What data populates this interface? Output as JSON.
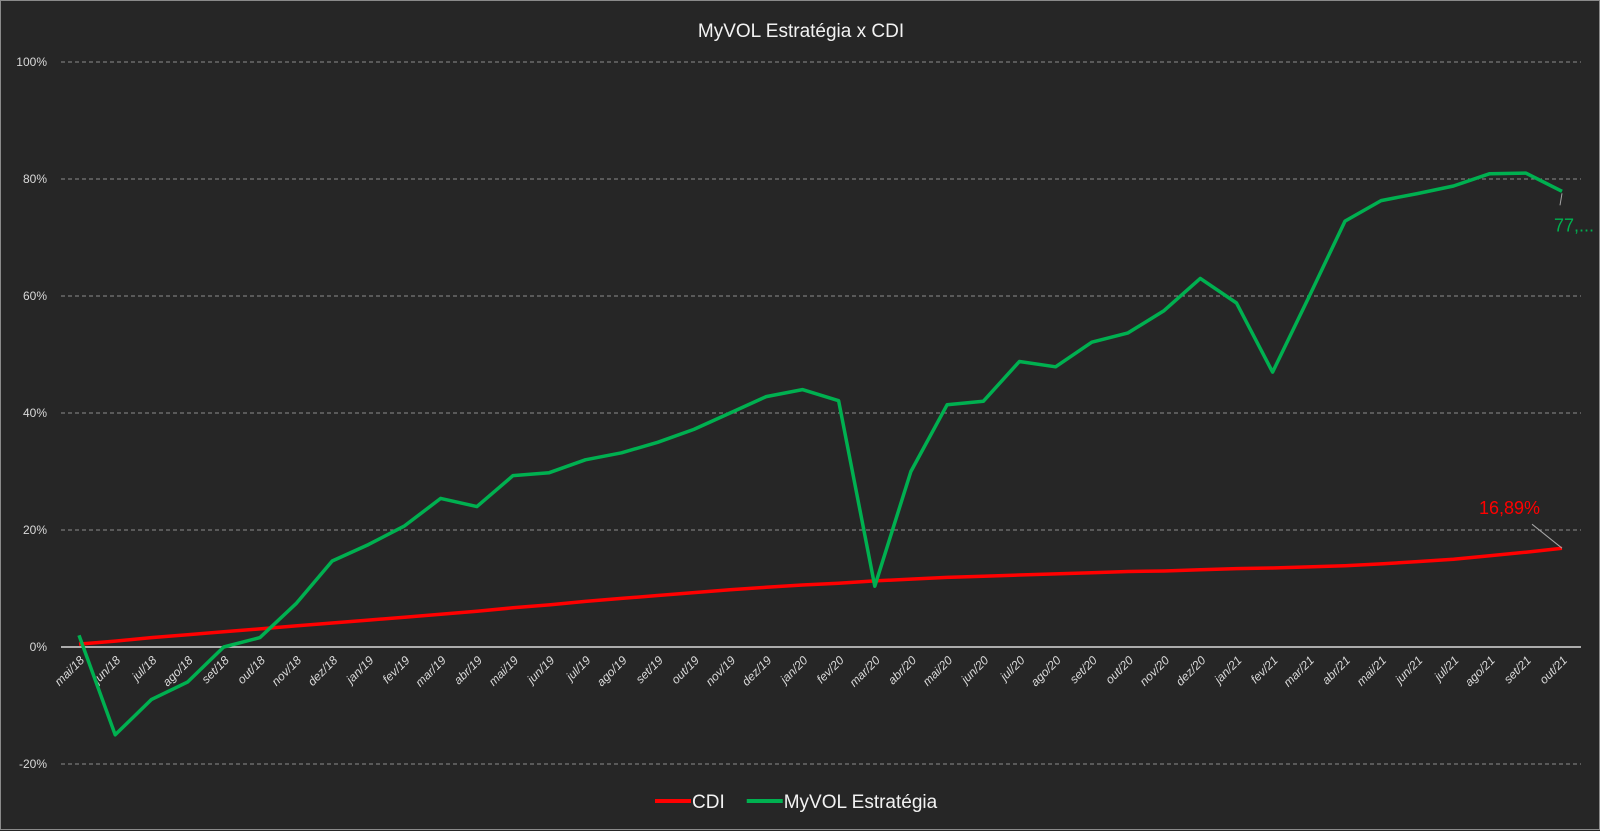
{
  "chart_data": {
    "type": "line",
    "title": "MyVOL Estratégia x CDI",
    "xlabel": "",
    "ylabel": "",
    "ylim": [
      -20,
      100
    ],
    "yticks": [
      -20,
      0,
      20,
      40,
      60,
      80,
      100
    ],
    "ytick_labels": [
      "-20%",
      "0%",
      "20%",
      "40%",
      "60%",
      "80%",
      "100%"
    ],
    "grid": true,
    "legend_position": "bottom",
    "categories": [
      "mai/18",
      "jun/18",
      "jul/18",
      "ago/18",
      "set/18",
      "out/18",
      "nov/18",
      "dez/18",
      "jan/19",
      "fev/19",
      "mar/19",
      "abr/19",
      "mai/19",
      "jun/19",
      "jul/19",
      "ago/19",
      "set/19",
      "out/19",
      "nov/19",
      "dez/19",
      "jan/20",
      "fev/20",
      "mar/20",
      "abr/20",
      "mai/20",
      "jun/20",
      "jul/20",
      "ago/20",
      "set/20",
      "out/20",
      "nov/20",
      "dez/20",
      "jan/21",
      "fev/21",
      "mar/21",
      "abr/21",
      "mai/21",
      "jun/21",
      "jul/21",
      "ago/21",
      "set/21",
      "out/21"
    ],
    "series": [
      {
        "name": "CDI",
        "color": "#ff0000",
        "values": [
          0.5,
          1.0,
          1.6,
          2.1,
          2.6,
          3.1,
          3.6,
          4.1,
          4.6,
          5.1,
          5.6,
          6.1,
          6.7,
          7.2,
          7.8,
          8.3,
          8.8,
          9.3,
          9.8,
          10.2,
          10.6,
          10.9,
          11.3,
          11.6,
          11.9,
          12.1,
          12.3,
          12.5,
          12.7,
          12.9,
          13.0,
          13.2,
          13.4,
          13.5,
          13.7,
          13.9,
          14.2,
          14.6,
          15.0,
          15.6,
          16.2,
          16.89
        ],
        "end_label": "16,89%"
      },
      {
        "name": "MyVOL Estratégia",
        "color": "#00b050",
        "values": [
          2.0,
          -15.0,
          -9.0,
          -6.0,
          0.0,
          1.6,
          7.4,
          14.7,
          17.5,
          20.7,
          25.4,
          24.0,
          29.3,
          29.8,
          32.0,
          33.2,
          35.0,
          37.2,
          40.0,
          42.8,
          44.0,
          42.1,
          10.4,
          30.0,
          41.4,
          42.0,
          48.8,
          47.9,
          52.1,
          53.7,
          57.5,
          63.0,
          58.8,
          47.0,
          59.8,
          72.8,
          76.3,
          77.5,
          78.8,
          80.9,
          81.0,
          77.9
        ],
        "end_label": "77,..."
      }
    ]
  }
}
